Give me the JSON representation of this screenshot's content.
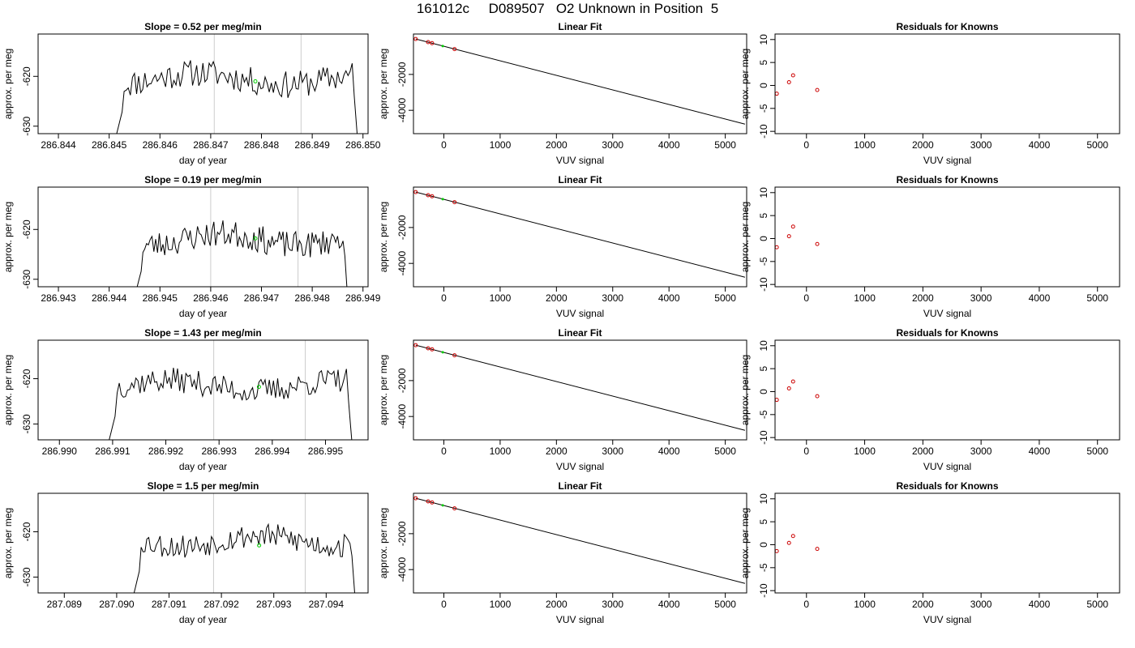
{
  "page_title": "161012c     D089507   O2 Unknown in Position  5",
  "colors": {
    "trace": "#000000",
    "known_point": "#cc0000",
    "unknown_point": "#00cc00",
    "reference_line": "#cccccc",
    "axis": "#000000"
  },
  "chart_data": [
    {
      "type": "line",
      "panel": "time-series",
      "row": 1,
      "title": "Slope =  0.52  per meg/min",
      "xlabel": "day of year",
      "ylabel": "approx. per meg",
      "xlim": [
        286.8436,
        286.8501
      ],
      "ylim": [
        -631.5,
        -611.5
      ],
      "xticks": [
        "286.844",
        "286.845",
        "286.846",
        "286.847",
        "286.848",
        "286.849",
        "286.850"
      ],
      "yticks": [
        "-630",
        "-620"
      ],
      "ytick_values": [
        -630,
        -620
      ],
      "trace_start": 286.84505,
      "trace_end": 286.84995,
      "trace_mean": -620.5,
      "seed": 11,
      "reference_lines": [
        286.84707,
        286.84878
      ],
      "unknown_point": {
        "x": 286.84788,
        "y": -621.0
      }
    },
    {
      "type": "scatter",
      "panel": "linear-fit",
      "row": 1,
      "title": "Linear Fit",
      "xlabel": "VUV signal",
      "ylabel": "approx. per meg",
      "xlim": [
        -540,
        5380
      ],
      "ylim": [
        -5300,
        250
      ],
      "xticks": [
        "0",
        "1000",
        "2000",
        "3000",
        "4000",
        "5000"
      ],
      "yticks": [
        "-4000",
        "-2000"
      ],
      "ytick_values": [
        -4000,
        -2000
      ],
      "fit_line": {
        "x": [
          -500,
          5350
        ],
        "y": [
          -25,
          -4770
        ]
      },
      "known_points": [
        {
          "x": -500,
          "y": -25
        },
        {
          "x": -280,
          "y": -200
        },
        {
          "x": -210,
          "y": -260
        },
        {
          "x": 190,
          "y": -590
        }
      ],
      "unknown_point": {
        "x": -20,
        "y": -420
      }
    },
    {
      "type": "scatter",
      "panel": "residuals",
      "row": 1,
      "title": "Residuals for Knowns",
      "xlabel": "VUV signal",
      "ylabel": "approx. per meg",
      "xlim": [
        -540,
        5380
      ],
      "ylim": [
        -10.5,
        11.2
      ],
      "xticks": [
        "0",
        "1000",
        "2000",
        "3000",
        "4000",
        "5000"
      ],
      "yticks": [
        "-10",
        "-5",
        "0",
        "5",
        "10"
      ],
      "ytick_values": [
        -10,
        -5,
        0,
        5,
        10
      ],
      "points": [
        {
          "x": -510,
          "y": -1.8
        },
        {
          "x": -300,
          "y": 0.7
        },
        {
          "x": -230,
          "y": 2.2
        },
        {
          "x": 185,
          "y": -1.0
        }
      ]
    },
    {
      "type": "line",
      "panel": "time-series",
      "row": 2,
      "title": "Slope =  0.19  per meg/min",
      "xlabel": "day of year",
      "ylabel": "approx. per meg",
      "xlim": [
        286.9426,
        286.9491
      ],
      "ylim": [
        -631.5,
        -611.5
      ],
      "xticks": [
        "286.943",
        "286.944",
        "286.945",
        "286.946",
        "286.947",
        "286.948",
        "286.949"
      ],
      "yticks": [
        "-630",
        "-620"
      ],
      "ytick_values": [
        -630,
        -620
      ],
      "trace_start": 286.94445,
      "trace_end": 286.94875,
      "trace_mean": -622.0,
      "seed": 23,
      "reference_lines": [
        286.946,
        286.94772
      ],
      "unknown_point": {
        "x": 286.94688,
        "y": -621.8
      }
    },
    {
      "type": "scatter",
      "panel": "linear-fit",
      "row": 2,
      "title": "Linear Fit",
      "xlabel": "VUV signal",
      "ylabel": "approx. per meg",
      "xlim": [
        -540,
        5380
      ],
      "ylim": [
        -5300,
        250
      ],
      "xticks": [
        "0",
        "1000",
        "2000",
        "3000",
        "4000",
        "5000"
      ],
      "yticks": [
        "-4000",
        "-2000"
      ],
      "ytick_values": [
        -4000,
        -2000
      ],
      "fit_line": {
        "x": [
          -500,
          5350
        ],
        "y": [
          -25,
          -4770
        ]
      },
      "known_points": [
        {
          "x": -500,
          "y": -25
        },
        {
          "x": -280,
          "y": -200
        },
        {
          "x": -210,
          "y": -260
        },
        {
          "x": 190,
          "y": -590
        }
      ],
      "unknown_point": {
        "x": -20,
        "y": -420
      }
    },
    {
      "type": "scatter",
      "panel": "residuals",
      "row": 2,
      "title": "Residuals for Knowns",
      "xlabel": "VUV signal",
      "ylabel": "approx. per meg",
      "xlim": [
        -540,
        5380
      ],
      "ylim": [
        -10.5,
        11.2
      ],
      "xticks": [
        "0",
        "1000",
        "2000",
        "3000",
        "4000",
        "5000"
      ],
      "yticks": [
        "-10",
        "-5",
        "0",
        "5",
        "10"
      ],
      "ytick_values": [
        -10,
        -5,
        0,
        5,
        10
      ],
      "points": [
        {
          "x": -510,
          "y": -1.9
        },
        {
          "x": -300,
          "y": 0.5
        },
        {
          "x": -230,
          "y": 2.6
        },
        {
          "x": 185,
          "y": -1.2
        }
      ]
    },
    {
      "type": "line",
      "panel": "time-series",
      "row": 3,
      "title": "Slope =  1.43  per meg/min",
      "xlabel": "day of year",
      "ylabel": "approx. per meg",
      "xlim": [
        286.9896,
        286.9958
      ],
      "ylim": [
        -633.5,
        -611.5
      ],
      "xticks": [
        "286.990",
        "286.991",
        "286.992",
        "286.993",
        "286.994",
        "286.995"
      ],
      "yticks": [
        "-630",
        "-620"
      ],
      "ytick_values": [
        -630,
        -620
      ],
      "trace_start": 286.99085,
      "trace_end": 286.99555,
      "trace_mean": -621.5,
      "seed": 37,
      "reference_lines": [
        286.9929,
        286.99462
      ],
      "unknown_point": {
        "x": 286.99375,
        "y": -621.8
      }
    },
    {
      "type": "scatter",
      "panel": "linear-fit",
      "row": 3,
      "title": "Linear Fit",
      "xlabel": "VUV signal",
      "ylabel": "approx. per meg",
      "xlim": [
        -540,
        5380
      ],
      "ylim": [
        -5300,
        250
      ],
      "xticks": [
        "0",
        "1000",
        "2000",
        "3000",
        "4000",
        "5000"
      ],
      "yticks": [
        "-4000",
        "-2000"
      ],
      "ytick_values": [
        -4000,
        -2000
      ],
      "fit_line": {
        "x": [
          -500,
          5350
        ],
        "y": [
          -25,
          -4770
        ]
      },
      "known_points": [
        {
          "x": -500,
          "y": -25
        },
        {
          "x": -280,
          "y": -200
        },
        {
          "x": -210,
          "y": -260
        },
        {
          "x": 190,
          "y": -590
        }
      ],
      "unknown_point": {
        "x": -20,
        "y": -420
      }
    },
    {
      "type": "scatter",
      "panel": "residuals",
      "row": 3,
      "title": "Residuals for Knowns",
      "xlabel": "VUV signal",
      "ylabel": "approx. per meg",
      "xlim": [
        -540,
        5380
      ],
      "ylim": [
        -10.5,
        11.2
      ],
      "xticks": [
        "0",
        "1000",
        "2000",
        "3000",
        "4000",
        "5000"
      ],
      "yticks": [
        "-10",
        "-5",
        "0",
        "5",
        "10"
      ],
      "ytick_values": [
        -10,
        -5,
        0,
        5,
        10
      ],
      "points": [
        {
          "x": -510,
          "y": -1.8
        },
        {
          "x": -300,
          "y": 0.7
        },
        {
          "x": -230,
          "y": 2.2
        },
        {
          "x": 185,
          "y": -1.0
        }
      ]
    },
    {
      "type": "line",
      "panel": "time-series",
      "row": 4,
      "title": "Slope =  1.5  per meg/min",
      "xlabel": "day of year",
      "ylabel": "approx. per meg",
      "xlim": [
        287.0885,
        287.0948
      ],
      "ylim": [
        -633.5,
        -611.5
      ],
      "xticks": [
        "287.089",
        "287.090",
        "287.091",
        "287.092",
        "287.093",
        "287.094"
      ],
      "yticks": [
        "-630",
        "-620"
      ],
      "ytick_values": [
        -630,
        -620
      ],
      "trace_start": 287.09025,
      "trace_end": 287.0946,
      "trace_mean": -622.0,
      "seed": 53,
      "reference_lines": [
        287.09185,
        287.0936
      ],
      "unknown_point": {
        "x": 287.09272,
        "y": -623.0
      }
    },
    {
      "type": "scatter",
      "panel": "linear-fit",
      "row": 4,
      "title": "Linear Fit",
      "xlabel": "VUV signal",
      "ylabel": "approx. per meg",
      "xlim": [
        -540,
        5380
      ],
      "ylim": [
        -5300,
        250
      ],
      "xticks": [
        "0",
        "1000",
        "2000",
        "3000",
        "4000",
        "5000"
      ],
      "yticks": [
        "-4000",
        "-2000"
      ],
      "ytick_values": [
        -4000,
        -2000
      ],
      "fit_line": {
        "x": [
          -500,
          5350
        ],
        "y": [
          -25,
          -4770
        ]
      },
      "known_points": [
        {
          "x": -500,
          "y": -25
        },
        {
          "x": -280,
          "y": -200
        },
        {
          "x": -210,
          "y": -260
        },
        {
          "x": 190,
          "y": -590
        }
      ],
      "unknown_point": {
        "x": -20,
        "y": -420
      }
    },
    {
      "type": "scatter",
      "panel": "residuals",
      "row": 4,
      "title": "Residuals for Knowns",
      "xlabel": "VUV signal",
      "ylabel": "approx. per meg",
      "xlim": [
        -540,
        5380
      ],
      "ylim": [
        -10.5,
        11.2
      ],
      "xticks": [
        "0",
        "1000",
        "2000",
        "3000",
        "4000",
        "5000"
      ],
      "yticks": [
        "-10",
        "-5",
        "0",
        "5",
        "10"
      ],
      "ytick_values": [
        -10,
        -5,
        0,
        5,
        10
      ],
      "points": [
        {
          "x": -510,
          "y": -1.4
        },
        {
          "x": -300,
          "y": 0.4
        },
        {
          "x": -230,
          "y": 1.9
        },
        {
          "x": 185,
          "y": -0.9
        }
      ]
    }
  ]
}
